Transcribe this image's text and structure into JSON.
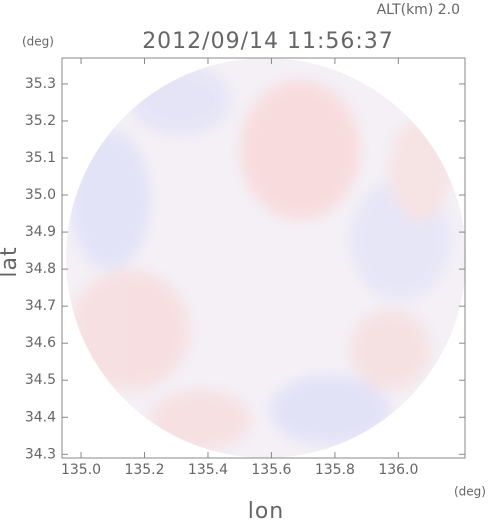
{
  "chart_data": {
    "type": "radar-field",
    "annotation": "ALT(km) 2.0",
    "title": "2012/09/14 11:56:37",
    "y_unit": "(deg)",
    "x_unit": "(deg)",
    "xlabel": "lon",
    "ylabel": "lat",
    "xlim": [
      134.94,
      136.21
    ],
    "xticks": [
      {
        "value": 135,
        "label": "135.0"
      },
      135.2,
      135.4,
      135.6,
      135.8,
      {
        "value": 136,
        "label": "136.0"
      }
    ],
    "ylim": [
      34.29,
      35.37
    ],
    "yticks": [
      34.3,
      34.4,
      34.5,
      34.6,
      34.7,
      34.8,
      34.9,
      {
        "value": 35,
        "label": "35.0"
      },
      35.1,
      35.2,
      35.3
    ]
  }
}
